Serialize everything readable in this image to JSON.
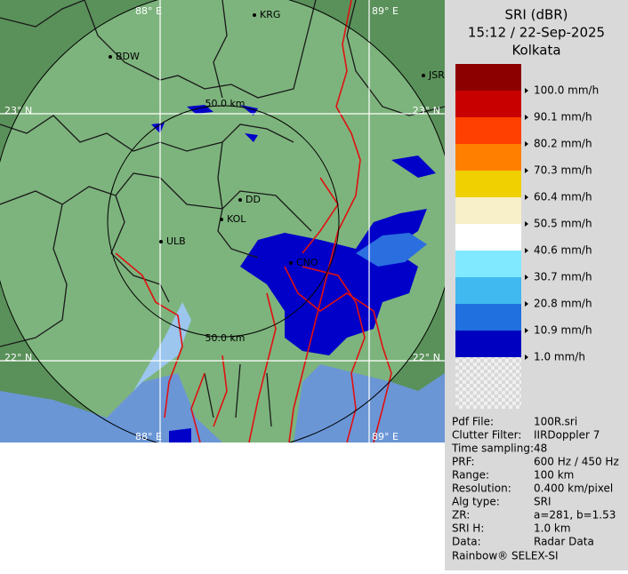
{
  "map": {
    "grid_labels": {
      "top": [
        "88° E",
        "89° E"
      ],
      "left": [
        "23° N",
        "22° N"
      ],
      "right": [
        "23° N",
        "22° N"
      ],
      "bottom": [
        "88° E",
        "89° E"
      ]
    },
    "places": [
      "BDW",
      "KRG",
      "JSR",
      "DD",
      "KOL",
      "ULB",
      "CNO"
    ],
    "ring_labels": [
      "50.0 km",
      "50.0 km"
    ]
  },
  "legend": {
    "title": "SRI (dBR)",
    "time": "15:12 / 22-Sep-2025",
    "site": "Kolkata",
    "entries": [
      {
        "label": "100.0 mm/h",
        "color": "#8c0000"
      },
      {
        "label": "90.1 mm/h",
        "color": "#c80000"
      },
      {
        "label": "80.2 mm/h",
        "color": "#ff4000"
      },
      {
        "label": "70.3 mm/h",
        "color": "#ff8000"
      },
      {
        "label": "60.4 mm/h",
        "color": "#f0d000"
      },
      {
        "label": "50.5 mm/h",
        "color": "#f8f0c8"
      },
      {
        "label": "40.6 mm/h",
        "color": "#ffffff"
      },
      {
        "label": "30.7 mm/h",
        "color": "#80e8ff"
      },
      {
        "label": "20.8 mm/h",
        "color": "#40b8f0"
      },
      {
        "label": "10.9 mm/h",
        "color": "#2070e0"
      },
      {
        "label": "1.0 mm/h",
        "color": "#0000c0"
      }
    ]
  },
  "info": {
    "rows": [
      [
        "Pdf File:",
        "100R.sri"
      ],
      [
        "Clutter Filter:",
        "IIRDoppler 7"
      ],
      [
        "Time sampling:",
        "48"
      ],
      [
        "PRF:",
        "600 Hz / 450 Hz"
      ],
      [
        "Range:",
        "100 km"
      ],
      [
        "Resolution:",
        "0.400 km/pixel"
      ],
      [
        "Alg type:",
        "SRI"
      ],
      [
        "ZR:",
        "a=281, b=1.53"
      ],
      [
        "SRI H:",
        "1.0 km"
      ],
      [
        "Data:",
        "Radar Data"
      ]
    ]
  },
  "footer": "Rainbow® SELEX-SI"
}
